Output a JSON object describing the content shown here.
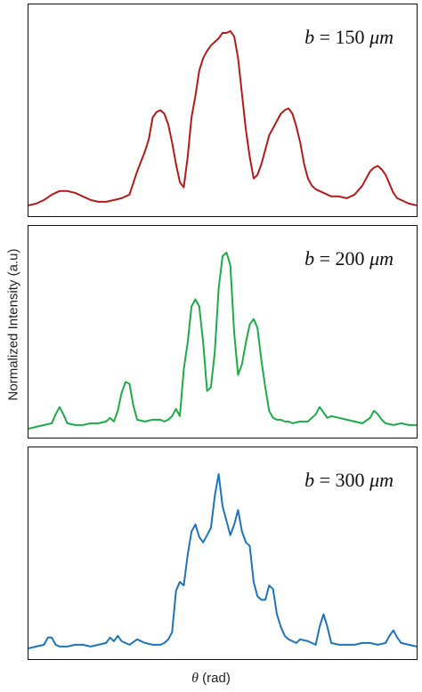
{
  "chart_data": {
    "type": "line",
    "ylabel": "Normalized Intensity (a.u)",
    "xlabel_symbol": "θ",
    "xlabel_unit": "(rad)",
    "grid": false,
    "legend": "none",
    "panels": [
      {
        "label_var": "b",
        "label_eq": "= 150",
        "label_unit": "μm",
        "color": "#b01c1c",
        "x": [
          0,
          0.02,
          0.04,
          0.06,
          0.08,
          0.1,
          0.12,
          0.14,
          0.16,
          0.18,
          0.2,
          0.22,
          0.24,
          0.26,
          0.28,
          0.3,
          0.31,
          0.32,
          0.33,
          0.34,
          0.35,
          0.36,
          0.37,
          0.38,
          0.39,
          0.4,
          0.41,
          0.42,
          0.43,
          0.44,
          0.45,
          0.46,
          0.47,
          0.48,
          0.49,
          0.5,
          0.51,
          0.52,
          0.53,
          0.54,
          0.55,
          0.56,
          0.57,
          0.58,
          0.59,
          0.6,
          0.61,
          0.62,
          0.63,
          0.64,
          0.65,
          0.66,
          0.67,
          0.68,
          0.69,
          0.7,
          0.71,
          0.72,
          0.73,
          0.74,
          0.75,
          0.76,
          0.77,
          0.78,
          0.8,
          0.82,
          0.84,
          0.86,
          0.87,
          0.88,
          0.89,
          0.9,
          0.91,
          0.92,
          0.93,
          0.94,
          0.95,
          0.96,
          0.97,
          0.98,
          1.0
        ],
        "y": [
          0.03,
          0.04,
          0.06,
          0.09,
          0.11,
          0.11,
          0.1,
          0.08,
          0.06,
          0.05,
          0.05,
          0.06,
          0.07,
          0.09,
          0.22,
          0.33,
          0.4,
          0.52,
          0.55,
          0.56,
          0.54,
          0.48,
          0.38,
          0.26,
          0.16,
          0.13,
          0.3,
          0.52,
          0.64,
          0.78,
          0.85,
          0.89,
          0.92,
          0.94,
          0.96,
          0.99,
          0.99,
          1.0,
          0.97,
          0.85,
          0.65,
          0.45,
          0.3,
          0.18,
          0.2,
          0.26,
          0.34,
          0.42,
          0.46,
          0.5,
          0.54,
          0.56,
          0.57,
          0.54,
          0.47,
          0.38,
          0.26,
          0.18,
          0.14,
          0.12,
          0.11,
          0.1,
          0.09,
          0.08,
          0.08,
          0.07,
          0.09,
          0.14,
          0.18,
          0.22,
          0.24,
          0.25,
          0.23,
          0.2,
          0.15,
          0.1,
          0.07,
          0.06,
          0.05,
          0.04,
          0.03
        ]
      },
      {
        "label_var": "b",
        "label_eq": "= 200",
        "label_unit": "μm",
        "color": "#1faa4a",
        "x": [
          0,
          0.02,
          0.04,
          0.06,
          0.07,
          0.08,
          0.09,
          0.1,
          0.12,
          0.14,
          0.16,
          0.18,
          0.2,
          0.21,
          0.22,
          0.23,
          0.24,
          0.25,
          0.26,
          0.27,
          0.28,
          0.3,
          0.32,
          0.34,
          0.35,
          0.36,
          0.37,
          0.38,
          0.39,
          0.4,
          0.41,
          0.42,
          0.43,
          0.44,
          0.45,
          0.46,
          0.47,
          0.48,
          0.49,
          0.5,
          0.51,
          0.52,
          0.53,
          0.54,
          0.55,
          0.56,
          0.57,
          0.58,
          0.59,
          0.6,
          0.61,
          0.62,
          0.63,
          0.64,
          0.65,
          0.66,
          0.67,
          0.68,
          0.7,
          0.72,
          0.74,
          0.75,
          0.76,
          0.77,
          0.78,
          0.8,
          0.82,
          0.84,
          0.86,
          0.88,
          0.89,
          0.9,
          0.91,
          0.92,
          0.94,
          0.96,
          0.98,
          1.0
        ],
        "y": [
          0.02,
          0.03,
          0.04,
          0.05,
          0.1,
          0.14,
          0.1,
          0.05,
          0.04,
          0.04,
          0.05,
          0.05,
          0.06,
          0.08,
          0.06,
          0.12,
          0.22,
          0.28,
          0.27,
          0.15,
          0.07,
          0.06,
          0.07,
          0.07,
          0.06,
          0.07,
          0.09,
          0.13,
          0.09,
          0.35,
          0.5,
          0.7,
          0.74,
          0.7,
          0.5,
          0.23,
          0.25,
          0.45,
          0.8,
          0.98,
          1.0,
          0.93,
          0.55,
          0.32,
          0.38,
          0.5,
          0.6,
          0.63,
          0.58,
          0.4,
          0.25,
          0.12,
          0.08,
          0.07,
          0.07,
          0.06,
          0.06,
          0.05,
          0.06,
          0.06,
          0.1,
          0.14,
          0.11,
          0.08,
          0.09,
          0.08,
          0.07,
          0.06,
          0.05,
          0.08,
          0.12,
          0.1,
          0.07,
          0.05,
          0.04,
          0.05,
          0.04,
          0.04
        ]
      },
      {
        "label_var": "b",
        "label_eq": "= 300",
        "label_unit": "μm",
        "color": "#1f73b8",
        "x": [
          0,
          0.02,
          0.04,
          0.05,
          0.06,
          0.07,
          0.08,
          0.1,
          0.12,
          0.14,
          0.16,
          0.18,
          0.2,
          0.21,
          0.22,
          0.23,
          0.24,
          0.26,
          0.28,
          0.3,
          0.32,
          0.34,
          0.35,
          0.36,
          0.37,
          0.38,
          0.39,
          0.4,
          0.41,
          0.42,
          0.43,
          0.44,
          0.45,
          0.46,
          0.47,
          0.48,
          0.49,
          0.5,
          0.51,
          0.52,
          0.53,
          0.54,
          0.55,
          0.56,
          0.57,
          0.58,
          0.59,
          0.6,
          0.61,
          0.62,
          0.63,
          0.64,
          0.65,
          0.66,
          0.67,
          0.68,
          0.69,
          0.7,
          0.72,
          0.74,
          0.75,
          0.76,
          0.77,
          0.78,
          0.8,
          0.82,
          0.84,
          0.86,
          0.88,
          0.9,
          0.92,
          0.93,
          0.94,
          0.95,
          0.96,
          0.98,
          1.0
        ],
        "y": [
          0.03,
          0.04,
          0.05,
          0.09,
          0.09,
          0.05,
          0.04,
          0.04,
          0.05,
          0.05,
          0.04,
          0.05,
          0.06,
          0.09,
          0.07,
          0.1,
          0.07,
          0.05,
          0.08,
          0.06,
          0.05,
          0.05,
          0.06,
          0.08,
          0.12,
          0.35,
          0.4,
          0.38,
          0.55,
          0.68,
          0.72,
          0.65,
          0.62,
          0.66,
          0.7,
          0.88,
          1.0,
          0.82,
          0.74,
          0.66,
          0.72,
          0.8,
          0.68,
          0.62,
          0.6,
          0.4,
          0.32,
          0.3,
          0.3,
          0.38,
          0.36,
          0.22,
          0.15,
          0.1,
          0.08,
          0.07,
          0.06,
          0.08,
          0.07,
          0.05,
          0.15,
          0.22,
          0.15,
          0.06,
          0.05,
          0.05,
          0.05,
          0.06,
          0.06,
          0.05,
          0.06,
          0.1,
          0.13,
          0.09,
          0.06,
          0.05,
          0.04
        ]
      }
    ]
  }
}
